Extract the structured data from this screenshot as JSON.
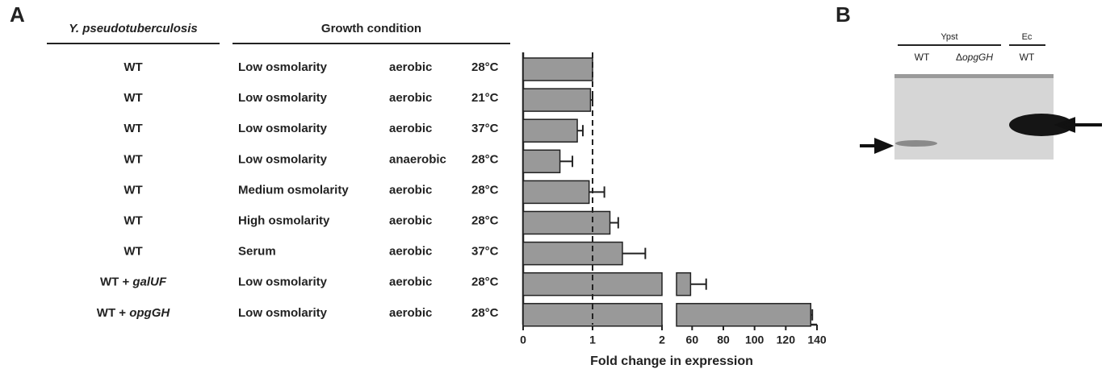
{
  "panel_a": {
    "label": "A",
    "table": {
      "headers": [
        "Y. pseudotuberculosis",
        "Growth condition"
      ],
      "rows": [
        {
          "strain": [
            "WT"
          ],
          "osmolarity": "Low osmolarity",
          "oxygen": "aerobic",
          "temperature": "28°C"
        },
        {
          "strain": [
            "WT"
          ],
          "osmolarity": "Low osmolarity",
          "oxygen": "aerobic",
          "temperature": "21°C"
        },
        {
          "strain": [
            "WT"
          ],
          "osmolarity": "Low osmolarity",
          "oxygen": "aerobic",
          "temperature": "37°C"
        },
        {
          "strain": [
            "WT"
          ],
          "osmolarity": "Low osmolarity",
          "oxygen": "anaerobic",
          "temperature": "28°C"
        },
        {
          "strain": [
            "WT"
          ],
          "osmolarity": "Medium osmolarity",
          "oxygen": "aerobic",
          "temperature": "28°C"
        },
        {
          "strain": [
            "WT"
          ],
          "osmolarity": "High osmolarity",
          "oxygen": "aerobic",
          "temperature": "28°C"
        },
        {
          "strain": [
            "WT"
          ],
          "osmolarity": "Serum",
          "oxygen": "aerobic",
          "temperature": "37°C"
        },
        {
          "strain": [
            "WT + ",
            "galUF"
          ],
          "osmolarity": "Low osmolarity",
          "oxygen": "aerobic",
          "temperature": "28°C"
        },
        {
          "strain": [
            "WT + ",
            "opgGH"
          ],
          "osmolarity": "Low osmolarity",
          "oxygen": "aerobic",
          "temperature": "28°C"
        }
      ]
    }
  },
  "chart_data": {
    "type": "hbar",
    "x_label": "Fold change in expression",
    "values": [
      1.0,
      0.97,
      0.78,
      0.53,
      0.95,
      1.25,
      1.43,
      59,
      136
    ],
    "errors": [
      0,
      0.03,
      0.08,
      0.18,
      0.22,
      0.12,
      0.33,
      10,
      1
    ],
    "color": "#999999",
    "xlim": [
      0,
      140
    ],
    "axis_break": [
      2,
      50
    ],
    "xticks": [
      0,
      1,
      2,
      60,
      80,
      100,
      120,
      140
    ],
    "reference_line": 1
  },
  "panel_b": {
    "label": "B",
    "groups": [
      "Ypst",
      "Ec"
    ],
    "lanes": [
      [
        "WT"
      ],
      [
        "Δ",
        "opgGH"
      ],
      [
        "WT"
      ]
    ]
  }
}
